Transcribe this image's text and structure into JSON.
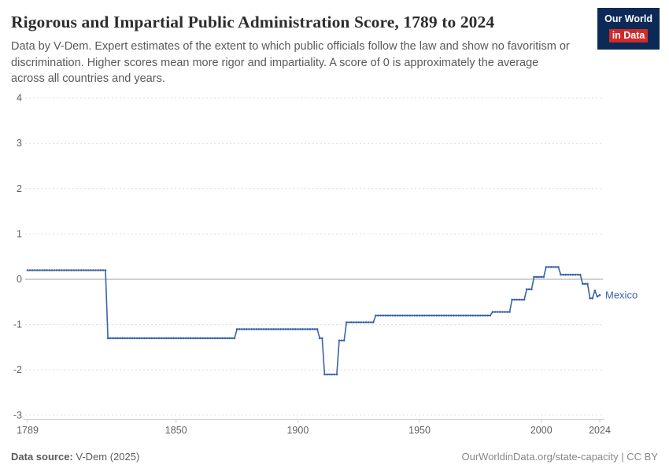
{
  "header": {
    "title": "Rigorous and Impartial Public Administration Score, 1789 to 2024",
    "subtitle": "Data by V-Dem. Expert estimates of the extent to which public officials follow the law and show no favoritism or discrimination. Higher scores mean more rigor and impartiality. A score of 0 is approximately the average across all countries and years.",
    "logo": {
      "line1": "Our World",
      "line2": "in Data"
    }
  },
  "colors": {
    "line": "#3a63a8",
    "logo_bg": "#0b2a57",
    "logo_red": "#cf2b2b",
    "grid": "#dcdcdc",
    "zero_line": "#a3a3a3",
    "axis_line": "#cccccc",
    "tick_text": "#5f5f5f"
  },
  "chart_data": {
    "type": "line",
    "title": "Rigorous and Impartial Public Administration Score, 1789 to 2024",
    "xlabel": "",
    "ylabel": "",
    "xlim": [
      1789,
      2024
    ],
    "ylim": [
      -3,
      4
    ],
    "yticks": [
      -3,
      -2,
      -1,
      0,
      1,
      2,
      3,
      4
    ],
    "xticks": [
      1789,
      1850,
      1900,
      1950,
      2000,
      2024
    ],
    "grid": "dashed-horizontal",
    "legend_position": "end-of-line-label",
    "series": [
      {
        "name": "Mexico",
        "interpolation": "step-hold-yearly",
        "points_step": [
          [
            1789,
            0.2
          ],
          [
            1822,
            -1.3
          ],
          [
            1875,
            -1.1
          ],
          [
            1909,
            -1.3
          ],
          [
            1911,
            -2.1
          ],
          [
            1917,
            -1.35
          ],
          [
            1920,
            -0.95
          ],
          [
            1932,
            -0.8
          ],
          [
            1980,
            -0.72
          ],
          [
            1988,
            -0.45
          ],
          [
            1994,
            -0.22
          ],
          [
            1997,
            0.05
          ],
          [
            2002,
            0.27
          ],
          [
            2008,
            0.1
          ],
          [
            2017,
            -0.1
          ],
          [
            2020,
            -0.42
          ],
          [
            2022,
            -0.25
          ],
          [
            2023,
            -0.38
          ],
          [
            2024,
            -0.35
          ]
        ]
      }
    ],
    "entity_label": "Mexico"
  },
  "footer": {
    "source_label": "Data source:",
    "source_value": " V-Dem (2025)",
    "credit": "OurWorldinData.org/state-capacity | CC BY"
  }
}
